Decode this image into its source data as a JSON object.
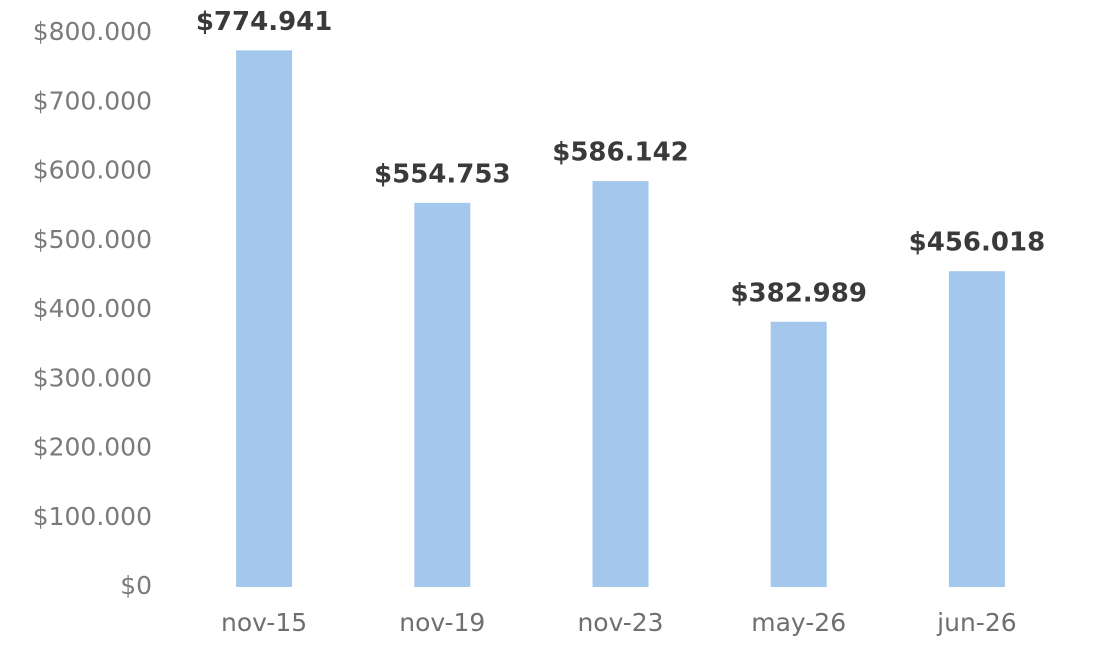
{
  "chart_data": {
    "type": "bar",
    "categories": [
      "nov-15",
      "nov-19",
      "nov-23",
      "may-26",
      "jun-26"
    ],
    "values": [
      774941,
      554753,
      586142,
      382989,
      456018
    ],
    "value_labels": [
      "$774.941",
      "$554.753",
      "$586.142",
      "$382.989",
      "$456.018"
    ],
    "color": "#a3c8ec",
    "ylim": [
      0,
      800000
    ],
    "yticks": [
      {
        "value": 0,
        "label": "$0"
      },
      {
        "value": 100000,
        "label": "$100.000"
      },
      {
        "value": 200000,
        "label": "$200.000"
      },
      {
        "value": 300000,
        "label": "$300.000"
      },
      {
        "value": 400000,
        "label": "$400.000"
      },
      {
        "value": 500000,
        "label": "$500.000"
      },
      {
        "value": 600000,
        "label": "$600.000"
      },
      {
        "value": 700000,
        "label": "$700.000"
      },
      {
        "value": 800000,
        "label": "$800.000"
      }
    ],
    "grid": false
  }
}
